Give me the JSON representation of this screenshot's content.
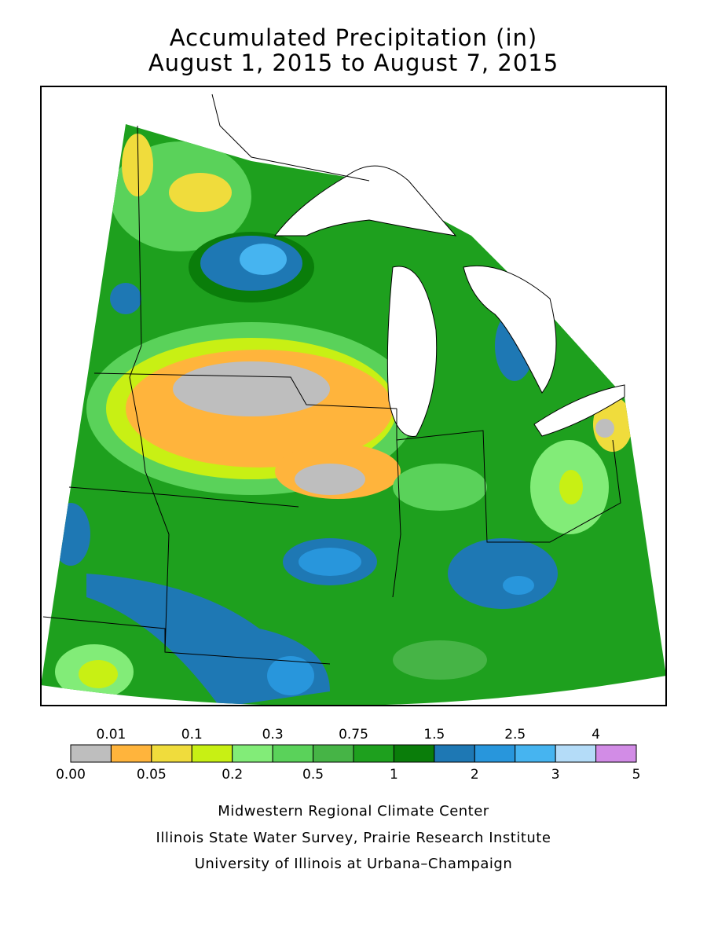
{
  "title": [
    "Accumulated Precipitation (in)",
    "August 1, 2015 to August 7, 2015"
  ],
  "legend": {
    "boundaries": [
      {
        "value": 0,
        "label": "0.00"
      },
      0.01,
      0.05,
      0.1,
      0.2,
      0.3,
      0.5,
      0.75,
      1,
      1.5,
      2,
      2.5,
      3,
      4,
      5
    ],
    "colors": [
      "#bebebe",
      "#ffb43c",
      "#f0dc3c",
      "#c8f014",
      "#82ec78",
      "#5ad25a",
      "#46b446",
      "#1ea01e",
      "#0a7d0a",
      "#1e78b4",
      "#2896dc",
      "#46b4f0",
      "#b4dcf8",
      "#d28ce6"
    ]
  },
  "credits": [
    "Midwestern Regional Climate Center",
    "Illinois State Water Survey, Prairie Research Institute",
    "University of Illinois at Urbana–Champaign"
  ]
}
